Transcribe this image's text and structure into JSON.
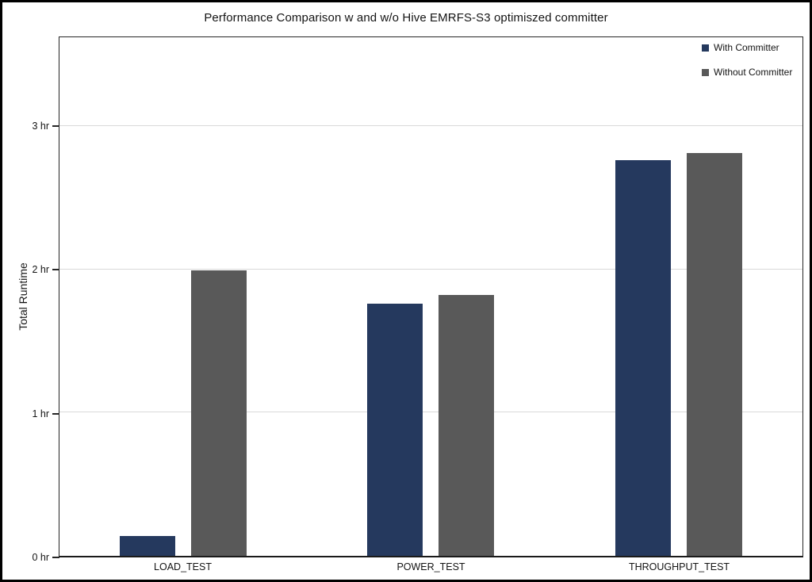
{
  "chart_data": {
    "type": "bar",
    "title": "Performance Comparison w and w/o Hive EMRFS-S3 optimiszed committer",
    "ylabel": "Total Runtime",
    "xlabel": "",
    "categories": [
      "LOAD_TEST",
      "POWER_TEST",
      "THROUGHPUT_TEST"
    ],
    "series": [
      {
        "name": "With Committer",
        "color": "#25395E",
        "values": [
          0.14,
          1.76,
          2.76
        ]
      },
      {
        "name": "Without Committer",
        "color": "#595959",
        "values": [
          1.99,
          1.82,
          2.81
        ]
      }
    ],
    "unit": "hr",
    "ylim": [
      0,
      3.62
    ],
    "yticks": [
      {
        "value": 0,
        "label": "0 hr"
      },
      {
        "value": 1,
        "label": "1 hr"
      },
      {
        "value": 2,
        "label": "2 hr"
      },
      {
        "value": 3,
        "label": "3 hr"
      }
    ],
    "grid": true,
    "legend_position": "top-right",
    "colors": {
      "gridline": "#D9D9D9",
      "axis": "#262626",
      "outer_border": "#000000",
      "background": "#FFFFFF"
    }
  }
}
